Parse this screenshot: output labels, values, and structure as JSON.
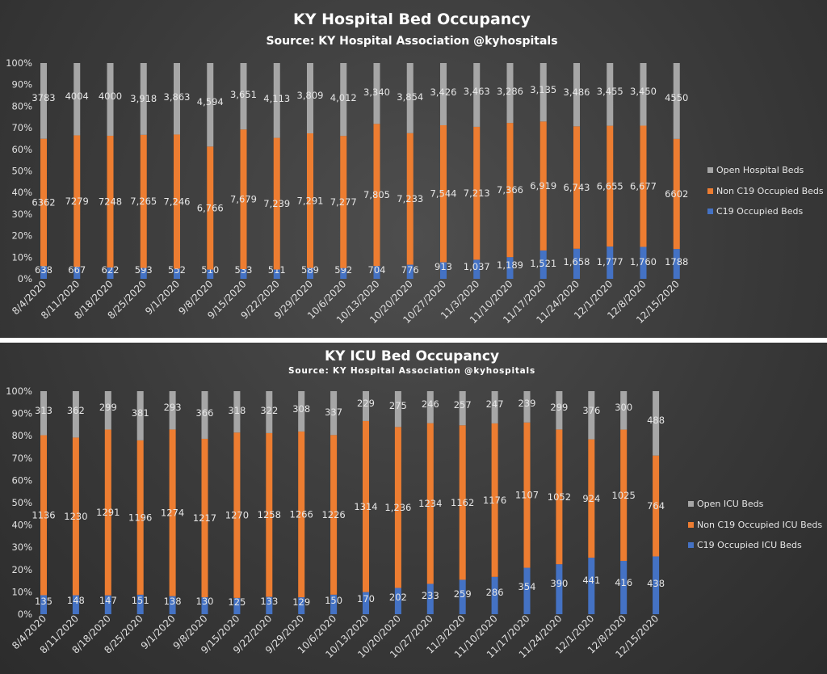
{
  "colors": {
    "open": "#a6a6a6",
    "non_c19": "#ed7d31",
    "c19": "#4472c4",
    "text": "#e6e6e6",
    "axis_text": "#e0e0e0"
  },
  "chart_data": [
    {
      "type": "bar",
      "stacked": "percent",
      "title": "KY Hospital Bed Occupancy",
      "subtitle": "Source: KY Hospital Association @kyhospitals",
      "ylim": [
        0,
        100
      ],
      "yticks": [
        "0%",
        "10%",
        "20%",
        "30%",
        "40%",
        "50%",
        "60%",
        "70%",
        "80%",
        "90%",
        "100%"
      ],
      "legend_position": "right",
      "categories": [
        "8/4/2020",
        "8/11/2020",
        "8/18/2020",
        "8/25/2020",
        "9/1/2020",
        "9/8/2020",
        "9/15/2020",
        "9/22/2020",
        "9/29/2020",
        "10/6/2020",
        "10/13/2020",
        "10/20/2020",
        "10/27/2020",
        "11/3/2020",
        "11/10/2020",
        "11/17/2020",
        "11/24/2020",
        "12/1/2020",
        "12/8/2020",
        "12/15/2020"
      ],
      "series": [
        {
          "name": "C19 Occupied Beds",
          "key": "c19",
          "values": [
            638,
            667,
            622,
            593,
            552,
            510,
            533,
            511,
            589,
            592,
            704,
            776,
            913,
            1037,
            1189,
            1521,
            1658,
            1777,
            1760,
            1788
          ],
          "labels": [
            "638",
            "667",
            "622",
            "593",
            "552",
            "510",
            "533",
            "511",
            "589",
            "592",
            "704",
            "776",
            "913",
            "1,037",
            "1,189",
            "1,521",
            "1,658",
            "1,777",
            "1,760",
            "1788"
          ]
        },
        {
          "name": "Non C19 Occupied Beds",
          "key": "non_c19",
          "values": [
            6362,
            7279,
            7248,
            7265,
            7246,
            6766,
            7679,
            7239,
            7291,
            7277,
            7805,
            7233,
            7544,
            7213,
            7366,
            6919,
            6743,
            6655,
            6677,
            6602
          ],
          "labels": [
            "6362",
            "7279",
            "7248",
            "7,265",
            "7,246",
            "6,766",
            "7,679",
            "7,239",
            "7,291",
            "7,277",
            "7,805",
            "7,233",
            "7,544",
            "7,213",
            "7,366",
            "6,919",
            "6,743",
            "6,655",
            "6,677",
            "6602"
          ]
        },
        {
          "name": "Open Hospital Beds",
          "key": "open",
          "values": [
            3783,
            4004,
            4000,
            3918,
            3863,
            4594,
            3651,
            4113,
            3809,
            4012,
            3340,
            3854,
            3426,
            3463,
            3286,
            3135,
            3486,
            3455,
            3450,
            4550
          ],
          "labels": [
            "3783",
            "4004",
            "4000",
            "3,918",
            "3,863",
            "4,594",
            "3,651",
            "4,113",
            "3,809",
            "4,012",
            "3,340",
            "3,854",
            "3,426",
            "3,463",
            "3,286",
            "3,135",
            "3,486",
            "3,455",
            "3,450",
            "4550"
          ]
        }
      ]
    },
    {
      "type": "bar",
      "stacked": "percent",
      "title": "KY ICU Bed Occupancy",
      "subtitle": "Source: KY Hospital Association @kyhospitals",
      "ylim": [
        0,
        100
      ],
      "yticks": [
        "0%",
        "10%",
        "20%",
        "30%",
        "40%",
        "50%",
        "60%",
        "70%",
        "80%",
        "90%",
        "100%"
      ],
      "legend_position": "right",
      "categories": [
        "8/4/2020",
        "8/11/2020",
        "8/18/2020",
        "8/25/2020",
        "9/1/2020",
        "9/8/2020",
        "9/15/2020",
        "9/22/2020",
        "9/29/2020",
        "10/6/2020",
        "10/13/2020",
        "10/20/2020",
        "10/27/2020",
        "11/3/2020",
        "11/10/2020",
        "11/17/2020",
        "11/24/2020",
        "12/1/2020",
        "12/8/2020",
        "12/15/2020"
      ],
      "series": [
        {
          "name": "C19 Occupied ICU Beds",
          "key": "c19",
          "values": [
            135,
            148,
            147,
            151,
            138,
            130,
            125,
            133,
            129,
            150,
            170,
            202,
            233,
            259,
            286,
            354,
            390,
            441,
            416,
            438
          ],
          "labels": [
            "135",
            "148",
            "147",
            "151",
            "138",
            "130",
            "125",
            "133",
            "129",
            "150",
            "170",
            "202",
            "233",
            "259",
            "286",
            "354",
            "390",
            "441",
            "416",
            "438"
          ]
        },
        {
          "name": "Non C19 Occupied ICU Beds",
          "key": "non_c19",
          "values": [
            1136,
            1230,
            1291,
            1196,
            1274,
            1217,
            1270,
            1258,
            1266,
            1226,
            1314,
            1236,
            1234,
            1162,
            1176,
            1107,
            1052,
            924,
            1025,
            764
          ],
          "labels": [
            "1136",
            "1230",
            "1291",
            "1196",
            "1274",
            "1217",
            "1270",
            "1258",
            "1266",
            "1226",
            "1314",
            "1,236",
            "1234",
            "1162",
            "1176",
            "1107",
            "1052",
            "924",
            "1025",
            "764"
          ]
        },
        {
          "name": "Open ICU Beds",
          "key": "open",
          "values": [
            313,
            362,
            299,
            381,
            293,
            366,
            318,
            322,
            308,
            337,
            229,
            275,
            246,
            257,
            247,
            239,
            299,
            376,
            300,
            488
          ],
          "labels": [
            "313",
            "362",
            "299",
            "381",
            "293",
            "366",
            "318",
            "322",
            "308",
            "337",
            "229",
            "275",
            "246",
            "257",
            "247",
            "239",
            "299",
            "376",
            "300",
            "488"
          ]
        }
      ]
    }
  ]
}
